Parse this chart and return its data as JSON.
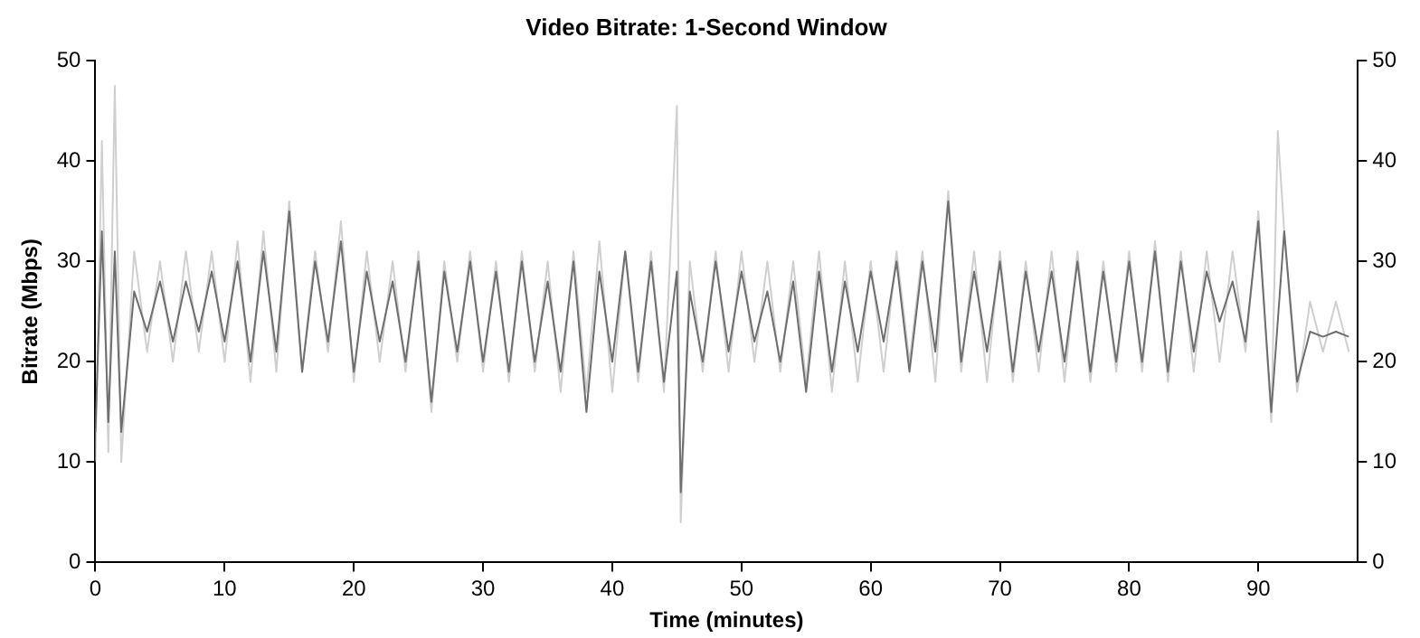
{
  "chart_data": {
    "type": "line",
    "title": "Video Bitrate: 1-Second Window",
    "xlabel": "Time (minutes)",
    "ylabel": "Bitrate (Mbps)",
    "xlim": [
      0,
      97.7
    ],
    "xticks": [
      0,
      10,
      20,
      30,
      40,
      50,
      60,
      70,
      80,
      90
    ],
    "ylim": [
      0,
      50
    ],
    "yticks": [
      0,
      10,
      20,
      30,
      40,
      50
    ],
    "y2lim": [
      0,
      50
    ],
    "y2ticks": [
      0,
      10,
      20,
      30,
      40,
      50
    ],
    "grid": false,
    "legend": false,
    "marker": "none",
    "line_style": "solid",
    "series": [
      {
        "color": "#cfcfcf",
        "x": [
          0,
          0.5,
          1,
          1.5,
          2,
          3,
          4,
          5,
          6,
          7,
          8,
          9,
          10,
          11,
          12,
          13,
          14,
          15,
          16,
          17,
          18,
          19,
          20,
          21,
          22,
          23,
          24,
          25,
          26,
          27,
          28,
          29,
          30,
          31,
          32,
          33,
          34,
          35,
          36,
          37,
          38,
          39,
          40,
          41,
          42,
          43,
          44,
          45,
          45.3,
          46,
          47,
          48,
          49,
          50,
          51,
          52,
          53,
          54,
          55,
          56,
          57,
          58,
          59,
          60,
          61,
          62,
          63,
          64,
          65,
          66,
          67,
          68,
          69,
          70,
          71,
          72,
          73,
          74,
          75,
          76,
          77,
          78,
          79,
          80,
          81,
          82,
          83,
          84,
          85,
          86,
          87,
          88,
          89,
          90,
          91,
          91.5,
          92,
          93,
          94,
          95,
          96,
          97
        ],
        "values": [
          10,
          42,
          11,
          47.5,
          10,
          31,
          21,
          30,
          20,
          31,
          21,
          31,
          20,
          32,
          18,
          33,
          19,
          36,
          19,
          31,
          21,
          34,
          18,
          31,
          20,
          30,
          19,
          31,
          15,
          30,
          20,
          31,
          19,
          30,
          18,
          31,
          19,
          30,
          17,
          31,
          17,
          32,
          17,
          31,
          18,
          31,
          17,
          45.5,
          4,
          30,
          19,
          31,
          19,
          31,
          20,
          30,
          19,
          30,
          18,
          31,
          17,
          30,
          18,
          30,
          19,
          31,
          20,
          31,
          18,
          37,
          19,
          31,
          18,
          31,
          18,
          30,
          19,
          31,
          18,
          31,
          18,
          30,
          19,
          31,
          19,
          32,
          18,
          31,
          19,
          31,
          20,
          31,
          21,
          35,
          14,
          43,
          33,
          17,
          26,
          21,
          26,
          21
        ]
      },
      {
        "color": "#6e6e6e",
        "x": [
          0,
          0.5,
          1,
          1.5,
          2,
          3,
          4,
          5,
          6,
          7,
          8,
          9,
          10,
          11,
          12,
          13,
          14,
          15,
          16,
          17,
          18,
          19,
          20,
          21,
          22,
          23,
          24,
          25,
          26,
          27,
          28,
          29,
          30,
          31,
          32,
          33,
          34,
          35,
          36,
          37,
          38,
          39,
          40,
          41,
          42,
          43,
          44,
          45,
          45.3,
          46,
          47,
          48,
          49,
          50,
          51,
          52,
          53,
          54,
          55,
          56,
          57,
          58,
          59,
          60,
          61,
          62,
          63,
          64,
          65,
          66,
          67,
          68,
          69,
          70,
          71,
          72,
          73,
          74,
          75,
          76,
          77,
          78,
          79,
          80,
          81,
          82,
          83,
          84,
          85,
          86,
          87,
          88,
          89,
          90,
          91,
          92,
          93,
          94,
          95,
          96,
          97
        ],
        "values": [
          13,
          33,
          14,
          31,
          13,
          27,
          23,
          28,
          22,
          28,
          23,
          29,
          22,
          30,
          20,
          31,
          21,
          35,
          19,
          30,
          22,
          32,
          19,
          29,
          22,
          28,
          20,
          30,
          16,
          29,
          21,
          30,
          20,
          29,
          19,
          30,
          20,
          28,
          19,
          30,
          15,
          29,
          20,
          31,
          19,
          30,
          18,
          29,
          7,
          27,
          20,
          30,
          21,
          29,
          22,
          27,
          20,
          28,
          17,
          29,
          19,
          28,
          21,
          29,
          22,
          30,
          19,
          30,
          21,
          36,
          20,
          29,
          21,
          30,
          19,
          29,
          21,
          29,
          20,
          30,
          19,
          29,
          20,
          30,
          20,
          31,
          19,
          30,
          21,
          29,
          24,
          28,
          22,
          34,
          15,
          33,
          18,
          23,
          22.5,
          23,
          22.5
        ]
      }
    ]
  }
}
